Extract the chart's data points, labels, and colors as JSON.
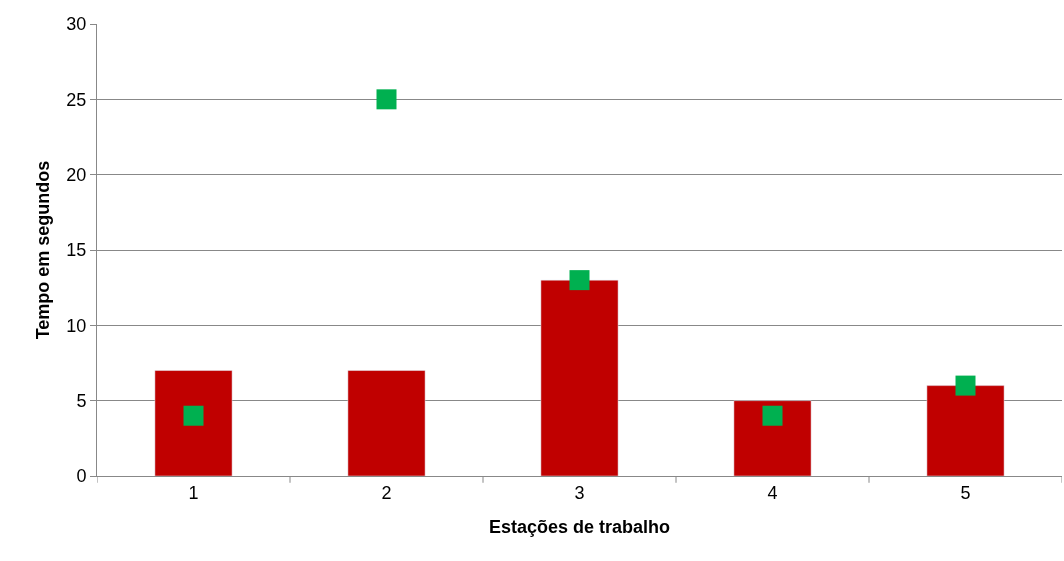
{
  "chart_data": {
    "type": "bar",
    "xlabel": "Estações de trabalho",
    "ylabel": "Tempo em segundos",
    "categories": [
      "1",
      "2",
      "3",
      "4",
      "5"
    ],
    "series": [
      {
        "color": "#c00000",
        "values": [
          7,
          7,
          13,
          5,
          6
        ]
      },
      {
        "type": "scatter",
        "marker": "square",
        "color": "#00b050",
        "x": [
          "1",
          "2",
          "3",
          "4",
          "5"
        ],
        "values": [
          4,
          25,
          13,
          4,
          6
        ]
      }
    ],
    "ylim": [
      0,
      30
    ],
    "yticks": [
      0,
      5,
      10,
      15,
      20,
      25,
      30
    ],
    "grid": "y"
  }
}
